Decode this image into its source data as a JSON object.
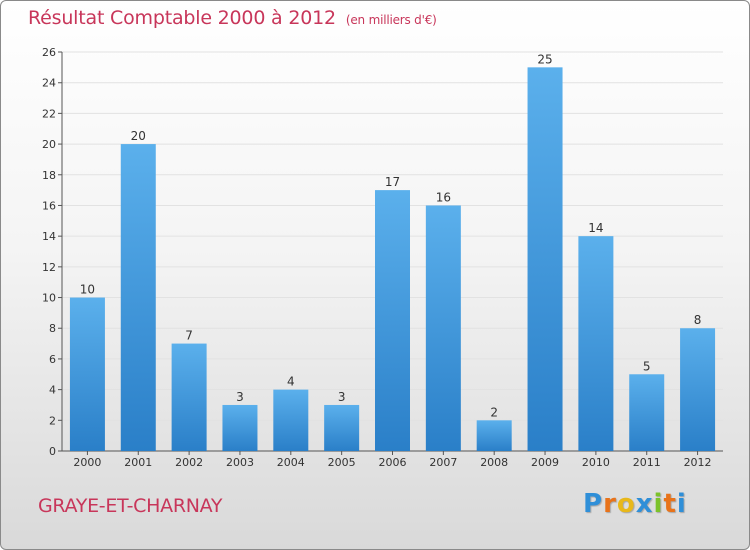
{
  "title": "Résultat Comptable 2000 à 2012",
  "title_unit": "(en milliers d'€)",
  "commune": "GRAYE-ET-CHARNAY",
  "logo": {
    "text": "Proxiti",
    "letters": [
      {
        "ch": "P",
        "color": "#2f8fd8"
      },
      {
        "ch": "r",
        "color": "#e8731a"
      },
      {
        "ch": "o",
        "color": "#e8b81a"
      },
      {
        "ch": "x",
        "color": "#2f8fd8"
      },
      {
        "ch": "i",
        "color": "#7cc22a"
      },
      {
        "ch": "t",
        "color": "#e8731a"
      },
      {
        "ch": "i",
        "color": "#2f8fd8"
      }
    ]
  },
  "colors": {
    "title": "#c8365a",
    "bar_top": "#5bb0ec",
    "bar_bottom": "#2a7fc8",
    "grid": "#e2e2e2"
  },
  "chart_data": {
    "type": "bar",
    "title": "Résultat Comptable 2000 à 2012",
    "xlabel": "",
    "ylabel": "",
    "ylim": [
      0,
      26
    ],
    "ytick_step": 2,
    "grid": true,
    "categories": [
      "2000",
      "2001",
      "2002",
      "2003",
      "2004",
      "2005",
      "2006",
      "2007",
      "2008",
      "2009",
      "2010",
      "2011",
      "2012"
    ],
    "values": [
      10,
      20,
      7,
      3,
      4,
      3,
      17,
      16,
      2,
      25,
      14,
      5,
      8
    ]
  }
}
